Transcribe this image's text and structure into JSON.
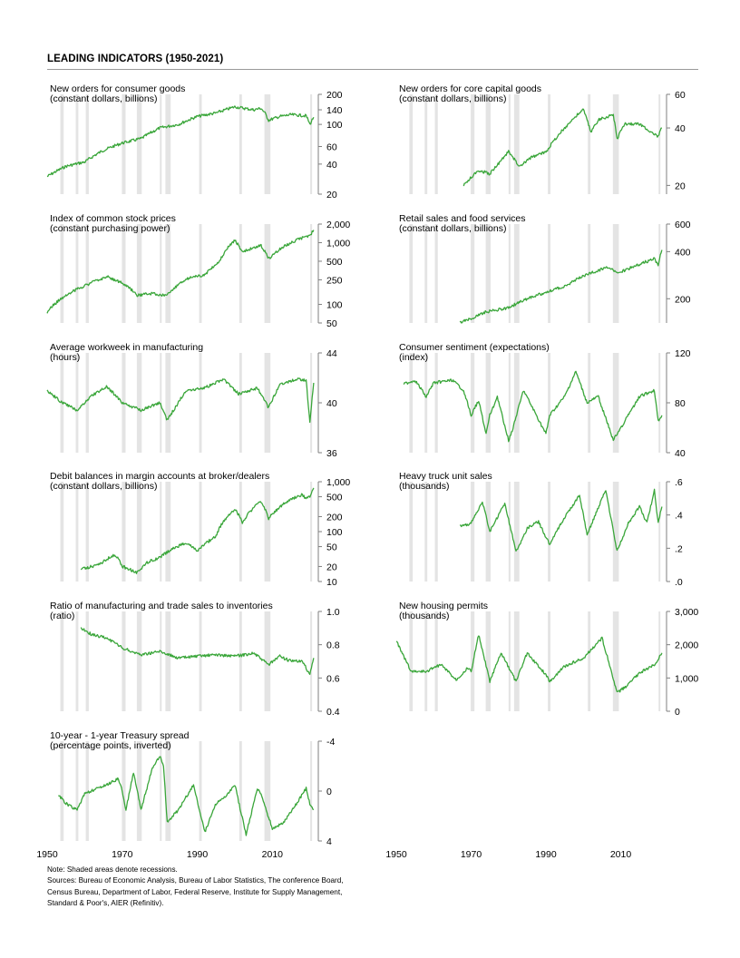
{
  "page": {
    "title": "LEADING INDICATORS (1950-2021)",
    "x_axis": {
      "min": 1950,
      "max": 2022,
      "ticks": [
        "1950",
        "1970",
        "1990",
        "2010"
      ]
    },
    "colors": {
      "line": "#3aa63a",
      "recession": "#e4e4e4",
      "axis": "#7f7f7f",
      "rule": "#9a9a9a"
    }
  },
  "recessions": [
    [
      1953.5,
      1954.4
    ],
    [
      1957.6,
      1958.3
    ],
    [
      1960.3,
      1961.1
    ],
    [
      1969.9,
      1970.9
    ],
    [
      1973.9,
      1975.2
    ],
    [
      1980.0,
      1980.5
    ],
    [
      1981.5,
      1982.9
    ],
    [
      1990.5,
      1991.2
    ],
    [
      2001.2,
      2001.9
    ],
    [
      2007.9,
      2009.5
    ],
    [
      2020.1,
      2020.4
    ]
  ],
  "chart_data": [
    {
      "id": "consumer-goods",
      "type": "line",
      "title": "New orders for consumer goods",
      "subtitle": "(constant dollars, billions)",
      "scale": "log",
      "ylim": [
        20,
        200
      ],
      "ticks": [
        "200",
        "140",
        "100",
        "60",
        "40",
        "20"
      ],
      "tick_values": [
        200,
        140,
        100,
        60,
        40,
        20
      ],
      "x": [
        1950,
        1955,
        1960,
        1965,
        1970,
        1975,
        1980,
        1985,
        1990,
        1995,
        2000,
        2005,
        2007,
        2008,
        2009,
        2012,
        2015,
        2019,
        2020,
        2021
      ],
      "y": [
        30,
        38,
        42,
        55,
        65,
        72,
        92,
        100,
        120,
        130,
        150,
        140,
        145,
        130,
        110,
        120,
        125,
        122,
        100,
        118
      ]
    },
    {
      "id": "capital-goods",
      "type": "line",
      "title": "New orders for core capital goods",
      "subtitle": "(constant dollars, billions)",
      "scale": "log",
      "ylim": [
        18,
        60
      ],
      "ticks": [
        "60",
        "40",
        "20"
      ],
      "tick_values": [
        60,
        40,
        20
      ],
      "x": [
        1968,
        1970,
        1972,
        1975,
        1978,
        1980,
        1983,
        1986,
        1990,
        1995,
        2000,
        2002,
        2004,
        2008,
        2009,
        2011,
        2015,
        2019,
        2020,
        2021
      ],
      "y": [
        20,
        22,
        24,
        23,
        27,
        30,
        25,
        28,
        30,
        40,
        50,
        38,
        44,
        47,
        35,
        42,
        42,
        37,
        36,
        40
      ]
    },
    {
      "id": "stock-prices",
      "type": "line",
      "title": "Index of common stock prices",
      "subtitle": "(constant purchasing power)",
      "scale": "log",
      "ylim": [
        50,
        2000
      ],
      "ticks": [
        "2,000",
        "1,000",
        "500",
        "250",
        "100",
        "50"
      ],
      "tick_values": [
        2000,
        1000,
        500,
        250,
        100,
        50
      ],
      "x": [
        1950,
        1955,
        1960,
        1966,
        1970,
        1974,
        1978,
        1982,
        1987,
        1992,
        1996,
        2000,
        2002,
        2007,
        2009,
        2013,
        2018,
        2020,
        2021
      ],
      "y": [
        75,
        140,
        200,
        280,
        220,
        140,
        150,
        140,
        260,
        300,
        500,
        1100,
        700,
        900,
        550,
        850,
        1200,
        1300,
        1600
      ]
    },
    {
      "id": "retail-sales",
      "type": "line",
      "title": "Retail sales and food services",
      "subtitle": "(constant dollars, billions)",
      "scale": "log",
      "ylim": [
        140,
        600
      ],
      "ticks": [
        "600",
        "400",
        "200"
      ],
      "tick_values": [
        600,
        400,
        200
      ],
      "x": [
        1967,
        1970,
        1974,
        1980,
        1985,
        1990,
        1995,
        2000,
        2007,
        2009,
        2012,
        2016,
        2019,
        2020,
        2021
      ],
      "y": [
        140,
        150,
        165,
        175,
        200,
        220,
        240,
        280,
        320,
        290,
        310,
        340,
        360,
        330,
        410
      ]
    },
    {
      "id": "workweek",
      "type": "line",
      "title": "Average workweek in manufacturing",
      "subtitle": "(hours)",
      "scale": "linear",
      "ylim": [
        36,
        44
      ],
      "ticks": [
        "44",
        "40",
        "36"
      ],
      "tick_values": [
        44,
        40,
        36
      ],
      "x": [
        1950,
        1954,
        1958,
        1962,
        1966,
        1970,
        1975,
        1980,
        1982,
        1987,
        1992,
        1997,
        2001,
        2006,
        2009,
        2012,
        2017,
        2019,
        2020,
        2021
      ],
      "y": [
        41,
        40,
        39.4,
        40.6,
        41.3,
        40,
        39.4,
        40,
        38.6,
        41,
        41.2,
        41.9,
        40.7,
        41.2,
        39.6,
        41.5,
        41.9,
        41.8,
        38.4,
        41.6
      ]
    },
    {
      "id": "consumer-sentiment",
      "type": "line",
      "title": "Consumer sentiment (expectations)",
      "subtitle": "(index)",
      "scale": "linear",
      "ylim": [
        40,
        120
      ],
      "ticks": [
        "120",
        "80",
        "40"
      ],
      "tick_values": [
        120,
        80,
        40
      ],
      "x": [
        1952,
        1955,
        1958,
        1960,
        1965,
        1968,
        1970,
        1972,
        1974,
        1975,
        1977,
        1980,
        1981,
        1984,
        1990,
        1991,
        1995,
        1998,
        2001,
        2004,
        2008,
        2010,
        2015,
        2019,
        2020,
        2021
      ],
      "y": [
        95,
        98,
        85,
        96,
        98,
        90,
        70,
        82,
        55,
        70,
        85,
        50,
        58,
        90,
        55,
        70,
        85,
        105,
        80,
        85,
        50,
        60,
        85,
        90,
        65,
        70
      ]
    },
    {
      "id": "margin-debt",
      "type": "line",
      "title": "Debit balances in margin accounts at broker/dealers",
      "subtitle": "(constant dollars, billions)",
      "scale": "log",
      "ylim": [
        10,
        1000
      ],
      "ticks": [
        "1,000",
        "500",
        "200",
        "100",
        "50",
        "20",
        "10"
      ],
      "tick_values": [
        1000,
        500,
        200,
        100,
        50,
        20,
        10
      ],
      "x": [
        1959,
        1962,
        1965,
        1968,
        1970,
        1974,
        1977,
        1980,
        1987,
        1990,
        1995,
        2000,
        2002,
        2007,
        2009,
        2014,
        2018,
        2019,
        2020,
        2021
      ],
      "y": [
        18,
        20,
        25,
        35,
        20,
        15,
        25,
        30,
        60,
        40,
        80,
        280,
        150,
        400,
        180,
        400,
        550,
        450,
        500,
        750
      ]
    },
    {
      "id": "truck-sales",
      "type": "line",
      "title": "Heavy truck unit sales",
      "subtitle": "(thousands)",
      "scale": "linear",
      "ylim": [
        0,
        0.6
      ],
      "ticks": [
        ".6",
        ".4",
        ".2",
        ".0"
      ],
      "tick_values": [
        0.6,
        0.4,
        0.2,
        0
      ],
      "x": [
        1967,
        1970,
        1973,
        1975,
        1979,
        1982,
        1985,
        1988,
        1991,
        1994,
        1999,
        2001,
        2006,
        2009,
        2012,
        2015,
        2017,
        2019,
        2020,
        2021
      ],
      "y": [
        0.33,
        0.35,
        0.48,
        0.3,
        0.47,
        0.18,
        0.32,
        0.36,
        0.22,
        0.35,
        0.52,
        0.28,
        0.55,
        0.18,
        0.35,
        0.45,
        0.35,
        0.55,
        0.35,
        0.45
      ]
    },
    {
      "id": "sales-to-inventories",
      "type": "line",
      "title": "Ratio of manufacturing and trade sales to inventories",
      "subtitle": "(ratio)",
      "scale": "linear",
      "ylim": [
        0.4,
        1.0
      ],
      "ticks": [
        "1.0",
        "0.8",
        "0.6",
        "0.4"
      ],
      "tick_values": [
        1.0,
        0.8,
        0.6,
        0.4
      ],
      "x": [
        1959,
        1962,
        1966,
        1970,
        1975,
        1980,
        1985,
        1990,
        1995,
        2000,
        2005,
        2009,
        2012,
        2015,
        2018,
        2020,
        2021
      ],
      "y": [
        0.9,
        0.86,
        0.84,
        0.78,
        0.74,
        0.76,
        0.72,
        0.73,
        0.74,
        0.73,
        0.75,
        0.68,
        0.73,
        0.7,
        0.7,
        0.62,
        0.72
      ]
    },
    {
      "id": "housing-permits",
      "type": "line",
      "title": "New housing permits",
      "subtitle": "(thousands)",
      "scale": "linear",
      "ylim": [
        0,
        3000
      ],
      "ticks": [
        "3,000",
        "2,000",
        "1,000",
        "0"
      ],
      "tick_values": [
        3000,
        2000,
        1000,
        0
      ],
      "x": [
        1950,
        1954,
        1958,
        1962,
        1966,
        1969,
        1970,
        1972,
        1975,
        1978,
        1982,
        1985,
        1990,
        1991,
        1995,
        2000,
        2005,
        2006,
        2009,
        2012,
        2015,
        2019,
        2021
      ],
      "y": [
        2100,
        1200,
        1200,
        1400,
        950,
        1300,
        1200,
        2300,
        900,
        1750,
        900,
        1750,
        1100,
        900,
        1350,
        1600,
        2200,
        1800,
        550,
        800,
        1150,
        1400,
        1750
      ]
    },
    {
      "id": "treasury-spread",
      "type": "line",
      "title": "10-year - 1-year Treasury spread",
      "subtitle": "(percentage points, inverted)",
      "scale": "linear",
      "inverted": true,
      "ylim": [
        -4,
        4
      ],
      "ticks": [
        "-4",
        "0",
        "4"
      ],
      "tick_values": [
        -4,
        0,
        4
      ],
      "x": [
        1953,
        1955,
        1958,
        1960,
        1966,
        1969,
        1970,
        1971,
        1973,
        1975,
        1978,
        1980,
        1981,
        1982,
        1985,
        1989,
        1992,
        1995,
        1998,
        2000,
        2003,
        2006,
        2007,
        2010,
        2013,
        2016,
        2019,
        2020,
        2021
      ],
      "y": [
        0.3,
        1,
        1.5,
        0.2,
        -0.5,
        -1,
        0,
        1.5,
        -1.5,
        1.5,
        -1.8,
        -2.8,
        -2,
        2.5,
        1.5,
        -0.5,
        3.3,
        1,
        0.3,
        -0.5,
        3.5,
        -0.2,
        0.3,
        3,
        2.5,
        1.2,
        -0.2,
        1,
        1.5
      ]
    }
  ],
  "notes": [
    "Note: Shaded areas denote recessions.",
    "Sources: Bureau of Economic Analysis, Bureau of Labor Statistics, The conference Board,",
    "Census Bureau, Department of Labor, Federal Reserve, Institute for Supply Management,",
    "Standard & Poor's, AIER (Refinitiv)."
  ]
}
